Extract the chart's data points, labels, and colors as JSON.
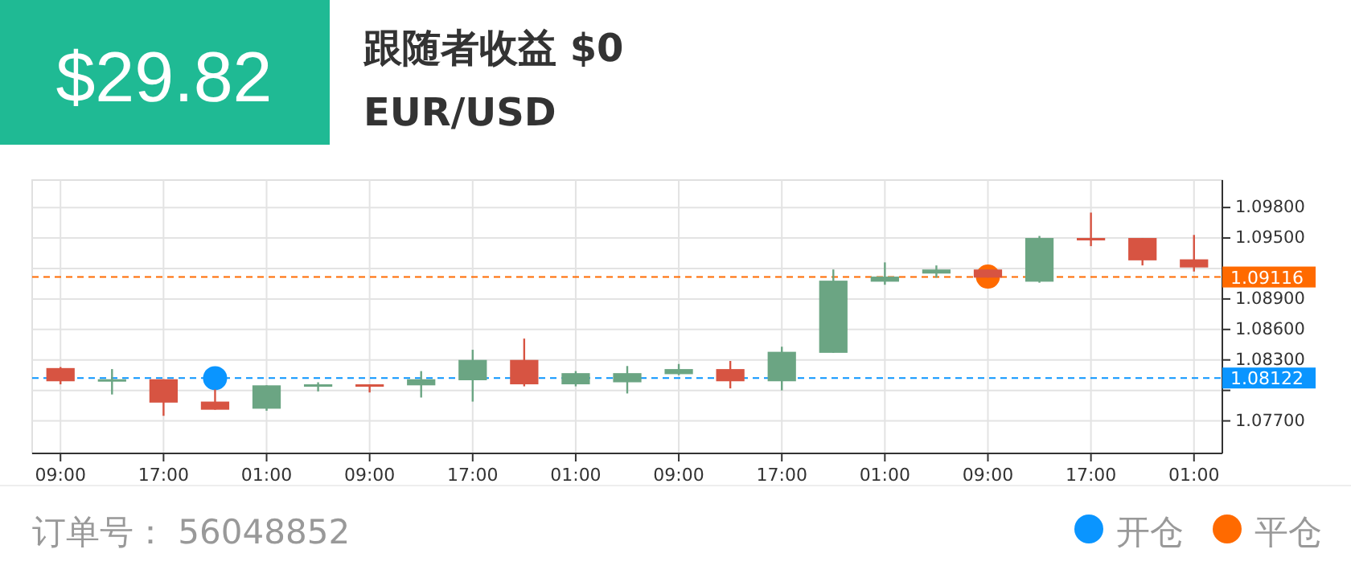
{
  "chart_data": {
    "type": "candlestick",
    "title": "EUR/USD",
    "annotations": [
      "$29.82",
      "跟随者收益 $0",
      "订单号： 56048852"
    ],
    "categories": [
      "09:00",
      null,
      "17:00",
      null,
      "01:00",
      null,
      "09:00",
      null,
      "17:00",
      null,
      "01:00",
      null,
      "09:00",
      null,
      "17:00",
      null,
      "01:00",
      null,
      "09:00",
      null,
      "17:00",
      null,
      "01:00"
    ],
    "ohlc": [
      [
        1.0822,
        1.0823,
        1.0806,
        1.0809
      ],
      [
        1.0809,
        1.0821,
        1.0796,
        1.0811
      ],
      [
        1.0811,
        1.0811,
        1.0775,
        1.0788
      ],
      [
        1.0789,
        1.0801,
        1.0781,
        1.0781
      ],
      [
        1.0782,
        1.0805,
        1.078,
        1.0805
      ],
      [
        1.0804,
        1.0808,
        1.0799,
        1.0806
      ],
      [
        1.0806,
        1.0806,
        1.0798,
        1.0804
      ],
      [
        1.0805,
        1.0819,
        1.0793,
        1.0811
      ],
      [
        1.081,
        1.084,
        1.0789,
        1.083
      ],
      [
        1.083,
        1.0851,
        1.0804,
        1.0806
      ],
      [
        1.0806,
        1.0819,
        1.0804,
        1.0817
      ],
      [
        1.0808,
        1.0824,
        1.0797,
        1.0817
      ],
      [
        1.0816,
        1.0826,
        1.0815,
        1.0821
      ],
      [
        1.0821,
        1.0829,
        1.0802,
        1.0809
      ],
      [
        1.0809,
        1.0843,
        1.08,
        1.0838
      ],
      [
        1.0837,
        1.0919,
        1.0837,
        1.0908
      ],
      [
        1.0907,
        1.0926,
        1.0904,
        1.0912
      ],
      [
        1.0915,
        1.0923,
        1.0911,
        1.0919
      ],
      [
        1.0919,
        1.0919,
        1.0911,
        1.0911
      ],
      [
        1.0907,
        1.0952,
        1.0906,
        1.095
      ],
      [
        1.095,
        1.0975,
        1.0942,
        1.0948
      ],
      [
        1.095,
        1.095,
        1.0923,
        1.0928
      ],
      [
        1.0929,
        1.0953,
        1.0917,
        1.0921
      ]
    ],
    "colors": [
      "#d75442",
      "#6ba583",
      "#d75442",
      "#d75442",
      "#6ba583",
      "#6ba583",
      "#d75442",
      "#6ba583",
      "#6ba583",
      "#d75442",
      "#6ba583",
      "#6ba583",
      "#6ba583",
      "#d75442",
      "#6ba583",
      "#6ba583",
      "#6ba583",
      "#6ba583",
      "#d75442",
      "#6ba583",
      "#d75442",
      "#d75442",
      "#d75442"
    ],
    "series": [
      {
        "type": "scatter",
        "name": "开仓",
        "color": "#0a95ff",
        "values": [
          null,
          null,
          null,
          1.0812,
          null,
          null,
          null,
          null,
          null,
          null,
          null,
          null,
          null,
          null,
          null,
          null,
          null,
          null,
          null,
          null,
          null,
          null,
          null
        ]
      },
      {
        "type": "scatter",
        "name": "平仓",
        "color": "#ff6a00",
        "values": [
          null,
          null,
          null,
          null,
          null,
          null,
          null,
          null,
          null,
          null,
          null,
          null,
          null,
          null,
          null,
          null,
          null,
          null,
          1.0912,
          null,
          null,
          null,
          null
        ]
      }
    ],
    "ylim": [
      1.0738,
      1.1007
    ],
    "yticks": [
      {
        "value": 1.077,
        "label": "1.07700"
      },
      {
        "value": 1.08,
        "label": null
      },
      {
        "value": 1.083,
        "label": "1.08300"
      },
      {
        "value": 1.086,
        "label": "1.08600"
      },
      {
        "value": 1.089,
        "label": "1.08900"
      },
      {
        "value": 1.092,
        "label": null
      },
      {
        "value": 1.095,
        "label": "1.09500"
      },
      {
        "value": 1.098,
        "label": "1.09800"
      }
    ],
    "ref_lines": [
      {
        "axis": "y",
        "value": 1.08122,
        "label": "1.08122",
        "color": "#0a95ff",
        "line_style": "dashed"
      },
      {
        "axis": "y",
        "value": 1.09116,
        "label": "1.09116",
        "color": "#ff6a00",
        "line_style": "dashed"
      }
    ],
    "grid": true,
    "marker": "circle",
    "legend": "bottom right"
  }
}
